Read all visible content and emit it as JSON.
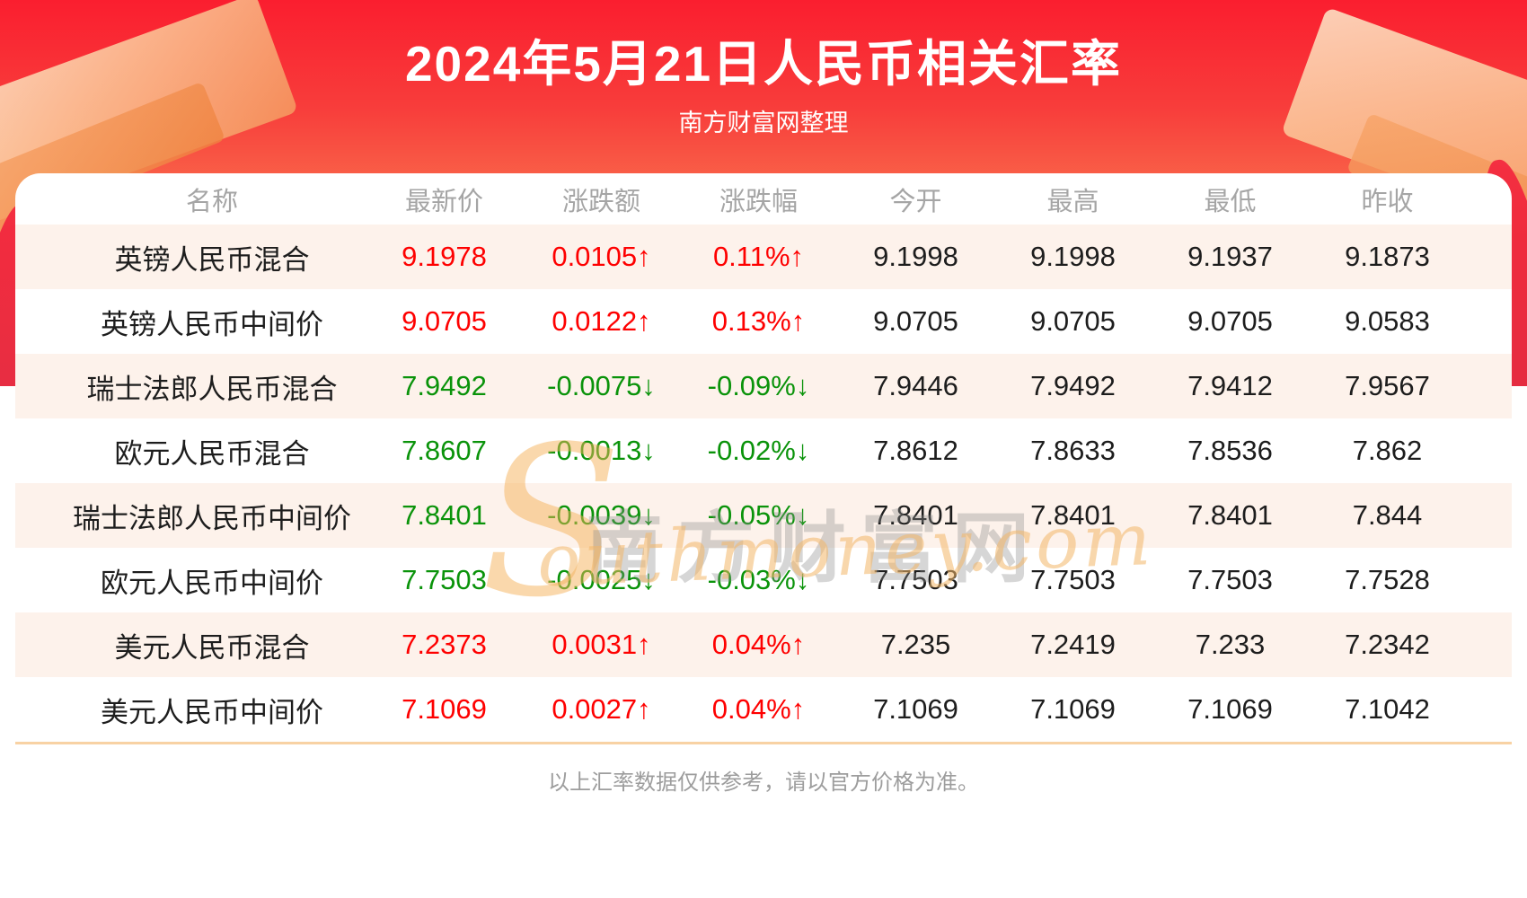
{
  "header": {
    "title": "2024年5月21日人民币相关汇率",
    "subtitle": "南方财富网整理"
  },
  "table": {
    "columns": [
      "名称",
      "最新价",
      "涨跌额",
      "涨跌幅",
      "今开",
      "最高",
      "最低",
      "昨收"
    ],
    "up_arrow": "↑",
    "down_arrow": "↓",
    "rows": [
      {
        "name": "英镑人民币混合",
        "latest": "9.1978",
        "change": "0.0105",
        "change_pct": "0.11%",
        "open": "9.1998",
        "high": "9.1998",
        "low": "9.1937",
        "prev_close": "9.1873",
        "direction": "up"
      },
      {
        "name": "英镑人民币中间价",
        "latest": "9.0705",
        "change": "0.0122",
        "change_pct": "0.13%",
        "open": "9.0705",
        "high": "9.0705",
        "low": "9.0705",
        "prev_close": "9.0583",
        "direction": "up"
      },
      {
        "name": "瑞士法郎人民币混合",
        "latest": "7.9492",
        "change": "-0.0075",
        "change_pct": "-0.09%",
        "open": "7.9446",
        "high": "7.9492",
        "low": "7.9412",
        "prev_close": "7.9567",
        "direction": "down"
      },
      {
        "name": "欧元人民币混合",
        "latest": "7.8607",
        "change": "-0.0013",
        "change_pct": "-0.02%",
        "open": "7.8612",
        "high": "7.8633",
        "low": "7.8536",
        "prev_close": "7.862",
        "direction": "down"
      },
      {
        "name": "瑞士法郎人民币中间价",
        "latest": "7.8401",
        "change": "-0.0039",
        "change_pct": "-0.05%",
        "open": "7.8401",
        "high": "7.8401",
        "low": "7.8401",
        "prev_close": "7.844",
        "direction": "down"
      },
      {
        "name": "欧元人民币中间价",
        "latest": "7.7503",
        "change": "-0.0025",
        "change_pct": "-0.03%",
        "open": "7.7503",
        "high": "7.7503",
        "low": "7.7503",
        "prev_close": "7.7528",
        "direction": "down"
      },
      {
        "name": "美元人民币混合",
        "latest": "7.2373",
        "change": "0.0031",
        "change_pct": "0.04%",
        "open": "7.235",
        "high": "7.2419",
        "low": "7.233",
        "prev_close": "7.2342",
        "direction": "up"
      },
      {
        "name": "美元人民币中间价",
        "latest": "7.1069",
        "change": "0.0027",
        "change_pct": "0.04%",
        "open": "7.1069",
        "high": "7.1069",
        "low": "7.1069",
        "prev_close": "7.1042",
        "direction": "up"
      }
    ]
  },
  "watermark": {
    "s": "S",
    "cn": "南方财富网",
    "en": "outhmoney.com"
  },
  "footer": {
    "note": "以上汇率数据仅供参考，请以官方价格为准。"
  },
  "colors": {
    "up": "#fe0000",
    "down": "#0a930a",
    "banner_red": "#fa1e2f",
    "row_tint": "#fdf2eb"
  }
}
